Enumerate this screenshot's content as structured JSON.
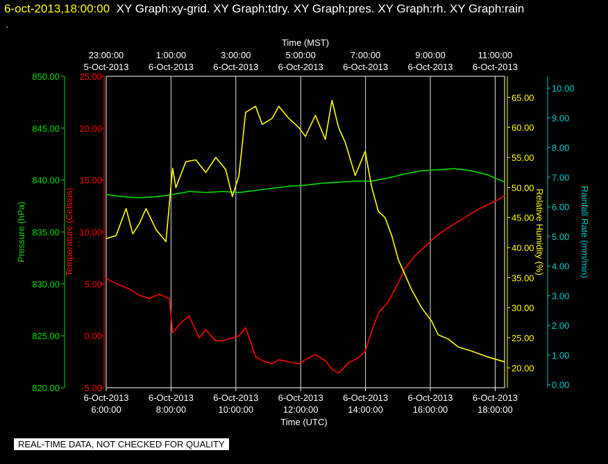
{
  "header": {
    "datetime": "6-oct-2013,18:00:00",
    "panels": "XY Graph:xy-grid.  XY Graph:tdry.  XY Graph:pres.  XY Graph:rh.  XY Graph:rain"
  },
  "dot": ".",
  "footer": "REAL-TIME DATA, NOT CHECKED FOR QUALITY",
  "colors": {
    "pressure": "#00dd00",
    "temperature": "#ff0000",
    "humidity": "#ffff00",
    "rain": "#00cccc",
    "grid": "#ffffff"
  },
  "chart_data": {
    "type": "line",
    "top_axis": {
      "title": "Time (MST)",
      "ticks": [
        {
          "t": 0,
          "l1": "23:00:00",
          "l2": "5-Oct-2013"
        },
        {
          "t": 2,
          "l1": "1:00:00",
          "l2": "6-Oct-2013"
        },
        {
          "t": 4,
          "l1": "3:00:00",
          "l2": "6-Oct-2013"
        },
        {
          "t": 6,
          "l1": "5:00:00",
          "l2": "6-Oct-2013"
        },
        {
          "t": 8,
          "l1": "7:00:00",
          "l2": "6-Oct-2013"
        },
        {
          "t": 10,
          "l1": "9:00:00",
          "l2": "6-Oct-2013"
        },
        {
          "t": 12,
          "l1": "11:00:00",
          "l2": "6-Oct-2013"
        }
      ]
    },
    "bottom_axis": {
      "title": "Time (UTC)",
      "ticks": [
        {
          "t": 0,
          "l1": "6-Oct-2013",
          "l2": "6:00:00"
        },
        {
          "t": 2,
          "l1": "6-Oct-2013",
          "l2": "8:00:00"
        },
        {
          "t": 4,
          "l1": "6-Oct-2013",
          "l2": "10:00:00"
        },
        {
          "t": 6,
          "l1": "6-Oct-2013",
          "l2": "12:00:00"
        },
        {
          "t": 8,
          "l1": "6-Oct-2013",
          "l2": "14:00:00"
        },
        {
          "t": 10,
          "l1": "6-Oct-2013",
          "l2": "16:00:00"
        },
        {
          "t": 12,
          "l1": "6-Oct-2013",
          "l2": "18:00:00"
        }
      ]
    },
    "x_range_hours": [
      0,
      12
    ],
    "grid": true,
    "left_axes": [
      {
        "key": "pressure",
        "label": "Pressure (hPa)",
        "min": 820,
        "max": 850,
        "ticks": [
          "820.00",
          "825.00",
          "830.00",
          "835.00",
          "840.00",
          "845.00",
          "850.00"
        ]
      },
      {
        "key": "temperature",
        "label": "Temperature (Celsius)",
        "min": -5,
        "max": 25,
        "ticks": [
          "-5.00",
          "0.00",
          "5.00",
          "10.00",
          "15.00",
          "20.00",
          "25.00"
        ]
      }
    ],
    "right_axes": [
      {
        "key": "humidity",
        "label": "Relative Humidity (%)",
        "min": 16.7,
        "max": 68.5,
        "ticks": [
          "20.00",
          "25.00",
          "30.00",
          "35.00",
          "40.00",
          "45.00",
          "50.00",
          "55.00",
          "60.00",
          "65.00"
        ]
      },
      {
        "key": "rain",
        "label": "Rainfall Rate (mm/min)",
        "min": -0.1,
        "max": 10.4,
        "ticks": [
          "0.00",
          "1.00",
          "2.00",
          "3.00",
          "4.00",
          "5.00",
          "6.00",
          "7.00",
          "8.00",
          "9.00",
          "10.00"
        ]
      }
    ],
    "series": [
      {
        "name": "Pressure (hPa)",
        "key": "pressure",
        "x": [
          0,
          0.5,
          1,
          1.5,
          2,
          2.5,
          3,
          3.5,
          4,
          4.5,
          5,
          5.5,
          6,
          6.5,
          7,
          7.5,
          8,
          8.5,
          9,
          9.5,
          10,
          10.5,
          11,
          11.5,
          12
        ],
        "y": [
          838.6,
          838.4,
          838.3,
          838.4,
          838.6,
          838.9,
          838.8,
          838.9,
          838.8,
          839.0,
          839.2,
          839.4,
          839.5,
          839.7,
          839.8,
          839.9,
          839.9,
          840.2,
          840.6,
          840.9,
          841.0,
          841.1,
          840.9,
          840.5,
          839.8
        ]
      },
      {
        "name": "Temperature (Celsius)",
        "key": "temperature",
        "x": [
          0,
          0.4,
          0.7,
          1,
          1.3,
          1.6,
          1.9,
          2,
          2.3,
          2.5,
          2.8,
          3,
          3.3,
          3.6,
          4,
          4.2,
          4.5,
          4.7,
          5,
          5.2,
          5.5,
          5.8,
          6,
          6.3,
          6.6,
          6.8,
          7,
          7.3,
          7.6,
          7.8,
          8,
          8.2,
          8.5,
          8.8,
          9,
          9.3,
          9.6,
          9.9,
          10.2,
          10.6,
          11,
          11.4,
          11.8,
          12
        ],
        "y": [
          5.5,
          4.9,
          4.5,
          3.9,
          3.6,
          4.0,
          3.6,
          0.3,
          1.4,
          1.9,
          -0.2,
          0.6,
          -0.5,
          -0.4,
          0.0,
          0.8,
          -2.0,
          -2.4,
          -2.7,
          -2.3,
          -2.5,
          -2.7,
          -2.3,
          -1.8,
          -2.4,
          -3.2,
          -3.6,
          -2.6,
          -2.1,
          -1.5,
          0.5,
          2.2,
          3.3,
          5.1,
          6.5,
          7.7,
          8.6,
          9.5,
          10.2,
          11.0,
          11.8,
          12.5,
          13.1,
          13.5
        ]
      },
      {
        "name": "Relative Humidity (%)",
        "key": "humidity",
        "x": [
          0,
          0.3,
          0.6,
          0.8,
          1,
          1.2,
          1.5,
          1.8,
          2,
          2.1,
          2.4,
          2.7,
          3,
          3.3,
          3.6,
          3.8,
          4,
          4.2,
          4.5,
          4.7,
          5,
          5.2,
          5.5,
          5.8,
          6,
          6.3,
          6.6,
          6.8,
          7,
          7.2,
          7.5,
          7.8,
          8,
          8.2,
          8.4,
          8.6,
          8.8,
          9,
          9.2,
          9.5,
          9.8,
          10,
          10.3,
          10.6,
          11,
          11.5,
          12
        ],
        "y": [
          41.5,
          42.0,
          46.5,
          42.3,
          44.0,
          46.5,
          43.0,
          41.0,
          53.2,
          50.0,
          54.3,
          54.6,
          52.5,
          55.0,
          53.0,
          48.5,
          52.0,
          62.5,
          63.5,
          60.5,
          61.5,
          63.5,
          61.5,
          60.0,
          58.5,
          62.0,
          58.0,
          64.5,
          60.0,
          57.5,
          52.0,
          56.0,
          50.0,
          46.0,
          45.0,
          42.0,
          38.0,
          35.5,
          33.0,
          30.0,
          27.8,
          25.5,
          24.8,
          23.5,
          22.8,
          21.8,
          21.0
        ]
      },
      {
        "name": "Rainfall Rate (mm/min)",
        "key": "rain",
        "x": [],
        "y": []
      }
    ]
  }
}
